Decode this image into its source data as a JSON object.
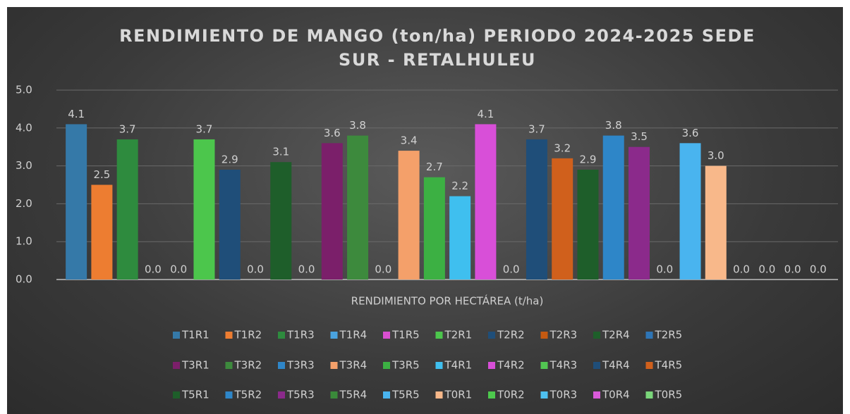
{
  "chart_data": {
    "type": "bar",
    "title": "RENDIMIENTO DE MANGO (ton/ha) PERIODO 2024-2025  SEDE SUR - RETALHULEU",
    "categories": [
      "RENDIMIENTO POR HECTÁREA (t/ha)"
    ],
    "ylim": [
      0,
      5
    ],
    "yticks": [
      {
        "value": 0,
        "label": "0.0"
      },
      {
        "value": 1,
        "label": "1.0"
      },
      {
        "value": 2,
        "label": "2.0"
      },
      {
        "value": 3,
        "label": "3.0"
      },
      {
        "value": 4,
        "label": "4.0"
      },
      {
        "value": 5,
        "label": "5.0"
      }
    ],
    "grid": true,
    "legend": "bottom",
    "series": [
      {
        "name": "T1R1",
        "color": "#3579a8",
        "values": [
          4.1
        ],
        "value_labels": [
          "4.1"
        ]
      },
      {
        "name": "T1R2",
        "color": "#ed7d31",
        "values": [
          2.5
        ],
        "value_labels": [
          "2.5"
        ]
      },
      {
        "name": "T1R3",
        "color": "#2e8b3e",
        "values": [
          3.7
        ],
        "value_labels": [
          "3.7"
        ]
      },
      {
        "name": "T1R4",
        "color": "#4aa3df",
        "values": [
          0
        ],
        "value_labels": [
          "0.0"
        ]
      },
      {
        "name": "T1R5",
        "color": "#d94fd0",
        "values": [
          0
        ],
        "value_labels": [
          "0.0"
        ]
      },
      {
        "name": "T2R1",
        "color": "#4cc64c",
        "values": [
          3.7
        ],
        "value_labels": [
          "3.7"
        ]
      },
      {
        "name": "T2R2",
        "color": "#1f4e79",
        "values": [
          2.9
        ],
        "value_labels": [
          "2.9"
        ]
      },
      {
        "name": "T2R3",
        "color": "#c55a11",
        "values": [
          0
        ],
        "value_labels": [
          "0.0"
        ]
      },
      {
        "name": "T2R4",
        "color": "#1e5e2a",
        "values": [
          3.1
        ],
        "value_labels": [
          "3.1"
        ]
      },
      {
        "name": "T2R5",
        "color": "#2e75b6",
        "values": [
          0
        ],
        "value_labels": [
          "0.0"
        ]
      },
      {
        "name": "T3R1",
        "color": "#7b1f6a",
        "values": [
          3.6
        ],
        "value_labels": [
          "3.6"
        ]
      },
      {
        "name": "T3R2",
        "color": "#3d8a3d",
        "values": [
          3.8
        ],
        "value_labels": [
          "3.8"
        ]
      },
      {
        "name": "T3R3",
        "color": "#2f86c8",
        "values": [
          0
        ],
        "value_labels": [
          "0.0"
        ]
      },
      {
        "name": "T3R4",
        "color": "#f4a06a",
        "values": [
          3.4
        ],
        "value_labels": [
          "3.4"
        ]
      },
      {
        "name": "T3R5",
        "color": "#3cb043",
        "values": [
          2.7
        ],
        "value_labels": [
          "2.7"
        ]
      },
      {
        "name": "T4R1",
        "color": "#3fbfef",
        "values": [
          2.2
        ],
        "value_labels": [
          "2.2"
        ]
      },
      {
        "name": "T4R2",
        "color": "#d84fd8",
        "values": [
          4.1
        ],
        "value_labels": [
          "4.1"
        ]
      },
      {
        "name": "T4R3",
        "color": "#52c652",
        "values": [
          0
        ],
        "value_labels": [
          "0.0"
        ]
      },
      {
        "name": "T4R4",
        "color": "#1f4e79",
        "values": [
          3.7
        ],
        "value_labels": [
          "3.7"
        ]
      },
      {
        "name": "T4R5",
        "color": "#d0601c",
        "values": [
          3.2
        ],
        "value_labels": [
          "3.2"
        ]
      },
      {
        "name": "T5R1",
        "color": "#1e5e2a",
        "values": [
          2.9
        ],
        "value_labels": [
          "2.9"
        ]
      },
      {
        "name": "T5R2",
        "color": "#2e86c8",
        "values": [
          3.8
        ],
        "value_labels": [
          "3.8"
        ]
      },
      {
        "name": "T5R3",
        "color": "#8b2a8b",
        "values": [
          3.5
        ],
        "value_labels": [
          "3.5"
        ]
      },
      {
        "name": "T5R4",
        "color": "#3a8a3a",
        "values": [
          0
        ],
        "value_labels": [
          "0.0"
        ]
      },
      {
        "name": "T5R5",
        "color": "#49b4ef",
        "values": [
          3.6
        ],
        "value_labels": [
          "3.6"
        ]
      },
      {
        "name": "T0R1",
        "color": "#f8b88a",
        "values": [
          3.0
        ],
        "value_labels": [
          "3.0"
        ]
      },
      {
        "name": "T0R2",
        "color": "#4dc94d",
        "values": [
          0
        ],
        "value_labels": [
          "0.0"
        ]
      },
      {
        "name": "T0R3",
        "color": "#4ec0f0",
        "values": [
          0
        ],
        "value_labels": [
          "0.0"
        ]
      },
      {
        "name": "T0R4",
        "color": "#d95ad9",
        "values": [
          0
        ],
        "value_labels": [
          "0.0"
        ]
      },
      {
        "name": "T0R5",
        "color": "#7ad67a",
        "values": [
          0
        ],
        "value_labels": [
          "0.0"
        ]
      }
    ]
  }
}
